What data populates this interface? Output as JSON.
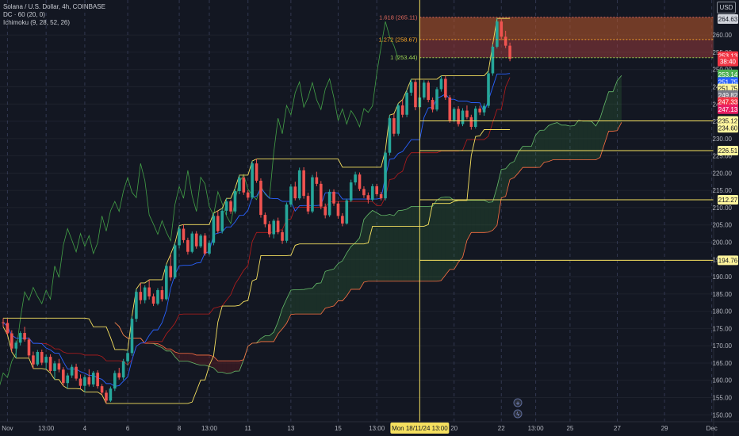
{
  "legend": {
    "title": "Solana / U.S. Dollar, 4h, COINBASE",
    "dc": "DC · 60 (20, 0)",
    "ichimoku": "Ichimoku (9, 28, 52, 26)"
  },
  "currency": "USD",
  "chart_data": {
    "type": "candlestick",
    "ylim": [
      148,
      266
    ],
    "y_ticks": [
      150,
      155,
      160,
      165,
      170,
      175,
      180,
      185,
      190,
      195,
      200,
      205,
      210,
      215,
      220,
      225,
      230,
      235,
      240,
      245,
      250,
      255,
      260
    ],
    "x_labels": [
      {
        "label": "Nov",
        "i": 1
      },
      {
        "label": "13:00",
        "i": 10
      },
      {
        "label": "4",
        "i": 19
      },
      {
        "label": "6",
        "i": 29
      },
      {
        "label": "8",
        "i": 41
      },
      {
        "label": "13:00",
        "i": 48
      },
      {
        "label": "11",
        "i": 57
      },
      {
        "label": "13",
        "i": 67
      },
      {
        "label": "15",
        "i": 78
      },
      {
        "label": "13:00",
        "i": 87
      },
      {
        "label": "20",
        "i": 105
      },
      {
        "label": "22",
        "i": 116
      },
      {
        "label": "13:00",
        "i": 124
      },
      {
        "label": "25",
        "i": 132
      },
      {
        "label": "27",
        "i": 143
      },
      {
        "label": "29",
        "i": 154
      },
      {
        "label": "Dec",
        "i": 165
      }
    ],
    "crosshair": {
      "i": 97,
      "label": "Mon 18/11/24  13:00"
    },
    "candles": [
      [
        176.8,
        178,
        175.5,
        176.6
      ],
      [
        176.6,
        177.8,
        173.2,
        173.6
      ],
      [
        173.6,
        174.5,
        168.2,
        169.2
      ],
      [
        169.2,
        171.5,
        166.4,
        170.9
      ],
      [
        170.9,
        174.2,
        170.1,
        173.7
      ],
      [
        173.7,
        175.5,
        171.2,
        171.8
      ],
      [
        171.8,
        172.4,
        166.6,
        167.2
      ],
      [
        167.2,
        168.3,
        163.4,
        164.6
      ],
      [
        164.6,
        168.8,
        164.1,
        168.2
      ],
      [
        168.2,
        168.9,
        164.4,
        165.1
      ],
      [
        165.1,
        167.5,
        163.2,
        166.8
      ],
      [
        166.8,
        167.5,
        162.1,
        162.7
      ],
      [
        162.7,
        165.6,
        160.2,
        164.9
      ],
      [
        164.9,
        166.2,
        162.3,
        163.1
      ],
      [
        163.1,
        163.8,
        158.4,
        159.2
      ],
      [
        159.2,
        162.1,
        157.6,
        161.4
      ],
      [
        161.4,
        164.6,
        160.7,
        163.9
      ],
      [
        163.9,
        164.8,
        159.9,
        160.5
      ],
      [
        160.5,
        161.7,
        157.5,
        158.4
      ],
      [
        158.4,
        161.5,
        156.6,
        160.9
      ],
      [
        160.9,
        163.2,
        158.2,
        158.8
      ],
      [
        158.8,
        162.7,
        158.1,
        162.2
      ],
      [
        162.2,
        162.9,
        157.6,
        158.3
      ],
      [
        158.3,
        158.9,
        155.8,
        156.4
      ],
      [
        156.4,
        157.1,
        153.3,
        154.1
      ],
      [
        154.1,
        158.2,
        153.7,
        157.6
      ],
      [
        157.6,
        162.8,
        156.9,
        162.1
      ],
      [
        162.1,
        163.6,
        160.2,
        160.8
      ],
      [
        160.8,
        166.2,
        160.1,
        165.5
      ],
      [
        165.5,
        168.7,
        164.3,
        167.9
      ],
      [
        167.9,
        178.6,
        167.1,
        177.8
      ],
      [
        177.8,
        186.4,
        176.9,
        185.6
      ],
      [
        185.6,
        188.2,
        182.1,
        183.2
      ],
      [
        183.2,
        187.5,
        182.3,
        186.9
      ],
      [
        186.9,
        189.1,
        183.4,
        184.3
      ],
      [
        184.3,
        185.1,
        181.5,
        182.2
      ],
      [
        182.2,
        186.7,
        181.7,
        186.1
      ],
      [
        186.1,
        187.2,
        182.8,
        183.5
      ],
      [
        183.5,
        193.6,
        183.1,
        193.1
      ],
      [
        193.1,
        196.5,
        188.8,
        189.8
      ],
      [
        189.8,
        199.7,
        189.3,
        199.1
      ],
      [
        199.1,
        204.8,
        198.2,
        203.9
      ],
      [
        203.9,
        205.1,
        199.8,
        200.6
      ],
      [
        200.6,
        201.3,
        196.4,
        197.2
      ],
      [
        197.2,
        203.1,
        196.8,
        202.5
      ],
      [
        202.5,
        203.2,
        198.1,
        198.8
      ],
      [
        198.8,
        202.4,
        198.3,
        201.9
      ],
      [
        201.9,
        202.6,
        196.1,
        196.7
      ],
      [
        196.7,
        200.5,
        196.2,
        199.8
      ],
      [
        199.8,
        208.4,
        199.1,
        207.6
      ],
      [
        207.6,
        209.1,
        202.6,
        203.2
      ],
      [
        203.2,
        209.8,
        202.5,
        209.1
      ],
      [
        209.1,
        212.7,
        207.9,
        211.8
      ],
      [
        211.8,
        212.3,
        208.2,
        208.9
      ],
      [
        208.9,
        215.6,
        208.3,
        214.8
      ],
      [
        214.8,
        219.4,
        213.9,
        218.7
      ],
      [
        218.7,
        219.2,
        213.7,
        214.4
      ],
      [
        214.4,
        215.1,
        212.1,
        212.9
      ],
      [
        212.9,
        223.5,
        212.5,
        222.8
      ],
      [
        222.8,
        224.1,
        217.2,
        217.8
      ],
      [
        217.8,
        218.5,
        207.1,
        207.9
      ],
      [
        207.9,
        208.6,
        204.3,
        205.2
      ],
      [
        205.2,
        206.1,
        201.4,
        202.3
      ],
      [
        202.3,
        206.7,
        201.1,
        206.2
      ],
      [
        206.2,
        207.1,
        202.3,
        202.9
      ],
      [
        202.9,
        203.6,
        199.5,
        200.4
      ],
      [
        200.4,
        211.5,
        199.8,
        210.9
      ],
      [
        210.9,
        216.8,
        210.2,
        216.1
      ],
      [
        216.1,
        217.5,
        212.1,
        212.7
      ],
      [
        212.7,
        221.6,
        212.2,
        220.8
      ],
      [
        220.8,
        221.7,
        212.6,
        213.4
      ],
      [
        213.4,
        214.3,
        208.1,
        208.9
      ],
      [
        208.9,
        219.5,
        208.4,
        218.8
      ],
      [
        218.8,
        220.4,
        216.2,
        216.9
      ],
      [
        216.9,
        217.7,
        209.5,
        210.3
      ],
      [
        210.3,
        211.2,
        206.9,
        207.8
      ],
      [
        207.8,
        215.3,
        207.3,
        214.6
      ],
      [
        214.6,
        215.3,
        210.5,
        211.2
      ],
      [
        211.2,
        211.9,
        206.8,
        207.6
      ],
      [
        207.6,
        208.4,
        204.6,
        205.4
      ],
      [
        205.4,
        212.6,
        205.1,
        212.1
      ],
      [
        212.1,
        218.1,
        211.6,
        217.3
      ],
      [
        217.3,
        220.4,
        216.5,
        219.6
      ],
      [
        219.6,
        220.2,
        214.8,
        215.4
      ],
      [
        215.4,
        216.2,
        212.8,
        213.6
      ],
      [
        213.6,
        214.4,
        211.2,
        212.3
      ],
      [
        212.3,
        216.9,
        211.8,
        216.2
      ],
      [
        216.2,
        216.9,
        213.3,
        213.9
      ],
      [
        213.9,
        214.6,
        212.1,
        212.7
      ],
      [
        212.7,
        226.6,
        212.1,
        225.9
      ],
      [
        225.9,
        236.8,
        225.1,
        235.9
      ],
      [
        235.9,
        237.2,
        230.6,
        231.4
      ],
      [
        231.4,
        240.2,
        230.8,
        239.6
      ],
      [
        239.6,
        241.3,
        236.1,
        236.9
      ],
      [
        236.9,
        244.1,
        236.2,
        243.3
      ],
      [
        243.3,
        247.2,
        242.4,
        246.4
      ],
      [
        246.4,
        247.1,
        238.2,
        239.1
      ],
      [
        239.1,
        242.7,
        238.6,
        241.9
      ],
      [
        241.9,
        246.9,
        241.3,
        246.2
      ],
      [
        246.2,
        246.8,
        240.5,
        241.2
      ],
      [
        241.2,
        241.9,
        237.6,
        238.4
      ],
      [
        238.4,
        244.9,
        237.9,
        244.3
      ],
      [
        244.3,
        248.2,
        243.6,
        247.3
      ],
      [
        247.3,
        248.1,
        241.2,
        241.9
      ],
      [
        241.9,
        242.6,
        234.6,
        235.3
      ],
      [
        235.3,
        239.1,
        234.8,
        238.6
      ],
      [
        238.6,
        239.4,
        233.5,
        234.2
      ],
      [
        234.2,
        238.8,
        233.6,
        238.1
      ],
      [
        238.1,
        239.6,
        235.6,
        236.2
      ],
      [
        236.2,
        236.9,
        232.6,
        233.4
      ],
      [
        233.4,
        239.4,
        232.9,
        238.7
      ],
      [
        238.7,
        239.5,
        236.8,
        237.6
      ],
      [
        237.6,
        240.2,
        236.6,
        239.5
      ],
      [
        239.5,
        249.6,
        238.9,
        248.9
      ],
      [
        248.9,
        257.3,
        248.2,
        256.6
      ],
      [
        256.6,
        264.8,
        256.1,
        263.9
      ],
      [
        263.9,
        264.6,
        258.6,
        259.5
      ],
      [
        259.5,
        261.2,
        256.2,
        256.9
      ],
      [
        256.9,
        257.8,
        252.4,
        253.1
      ]
    ],
    "fib": [
      {
        "label": "1.618 (265.11)",
        "value": 265.11,
        "color": "#e0695d"
      },
      {
        "label": "1.272 (258.67)",
        "value": 258.67,
        "color": "#f7a427"
      },
      {
        "label": "1 (253.44)",
        "value": 253.44,
        "color": "#9fd552"
      }
    ],
    "hlines": [
      {
        "value": 235.12,
        "label": "235.12"
      },
      {
        "value": 226.51,
        "label": "226.51"
      },
      {
        "value": 212.27,
        "label": "212.27"
      },
      {
        "value": 194.76,
        "label": "194.76"
      }
    ],
    "price_tags": [
      {
        "label": "264.63",
        "value": 264.63,
        "bg": "#d1d4dc",
        "fg": "#131722"
      },
      {
        "label": "253.13",
        "value": 253.9,
        "bg": "#f23645",
        "fg": "#ffffff"
      },
      {
        "label": "38:40",
        "value": 252.3,
        "bg": "#f23645",
        "fg": "#ffffff"
      },
      {
        "label": "253.14",
        "value": 248.6,
        "bg": "#4caf50",
        "fg": "#ffffff"
      },
      {
        "label": "251.75",
        "value": 246.4,
        "bg": "#2962ff",
        "fg": "#ffffff"
      },
      {
        "label": "251.75",
        "value": 244.5,
        "bg": "#fff59d",
        "fg": "#131722"
      },
      {
        "label": "249.82",
        "value": 242.6,
        "bg": "#787b86",
        "fg": "#ffffff"
      },
      {
        "label": "247.33",
        "value": 240.6,
        "bg": "#f23645",
        "fg": "#ffffff"
      },
      {
        "label": "247.13",
        "value": 238.5,
        "bg": "#e91e63",
        "fg": "#ffffff"
      },
      {
        "label": "235.12",
        "value": 235.12,
        "bg": "#fff59d",
        "fg": "#131722"
      },
      {
        "label": "234.60",
        "value": 233.1,
        "bg": "#fff59d",
        "fg": "#131722"
      },
      {
        "label": "226.51",
        "value": 226.51,
        "bg": "#fff59d",
        "fg": "#131722"
      },
      {
        "label": "212.27",
        "value": 212.27,
        "bg": "#fff59d",
        "fg": "#131722"
      },
      {
        "label": "194.76",
        "value": 194.76,
        "bg": "#fff59d",
        "fg": "#131722"
      }
    ],
    "colors": {
      "background": "#131722",
      "up": "#26a69a",
      "down": "#ef5350",
      "donchian": "#f5e05f",
      "tenkan": "#2962ff",
      "kijun": "#b71c1c",
      "chikou": "#43a047",
      "span_a": "#66bb6a",
      "span_b": "#ff7043",
      "fib_zone_1": "#c0592b",
      "fib_zone_2": "#a33d3d"
    }
  }
}
